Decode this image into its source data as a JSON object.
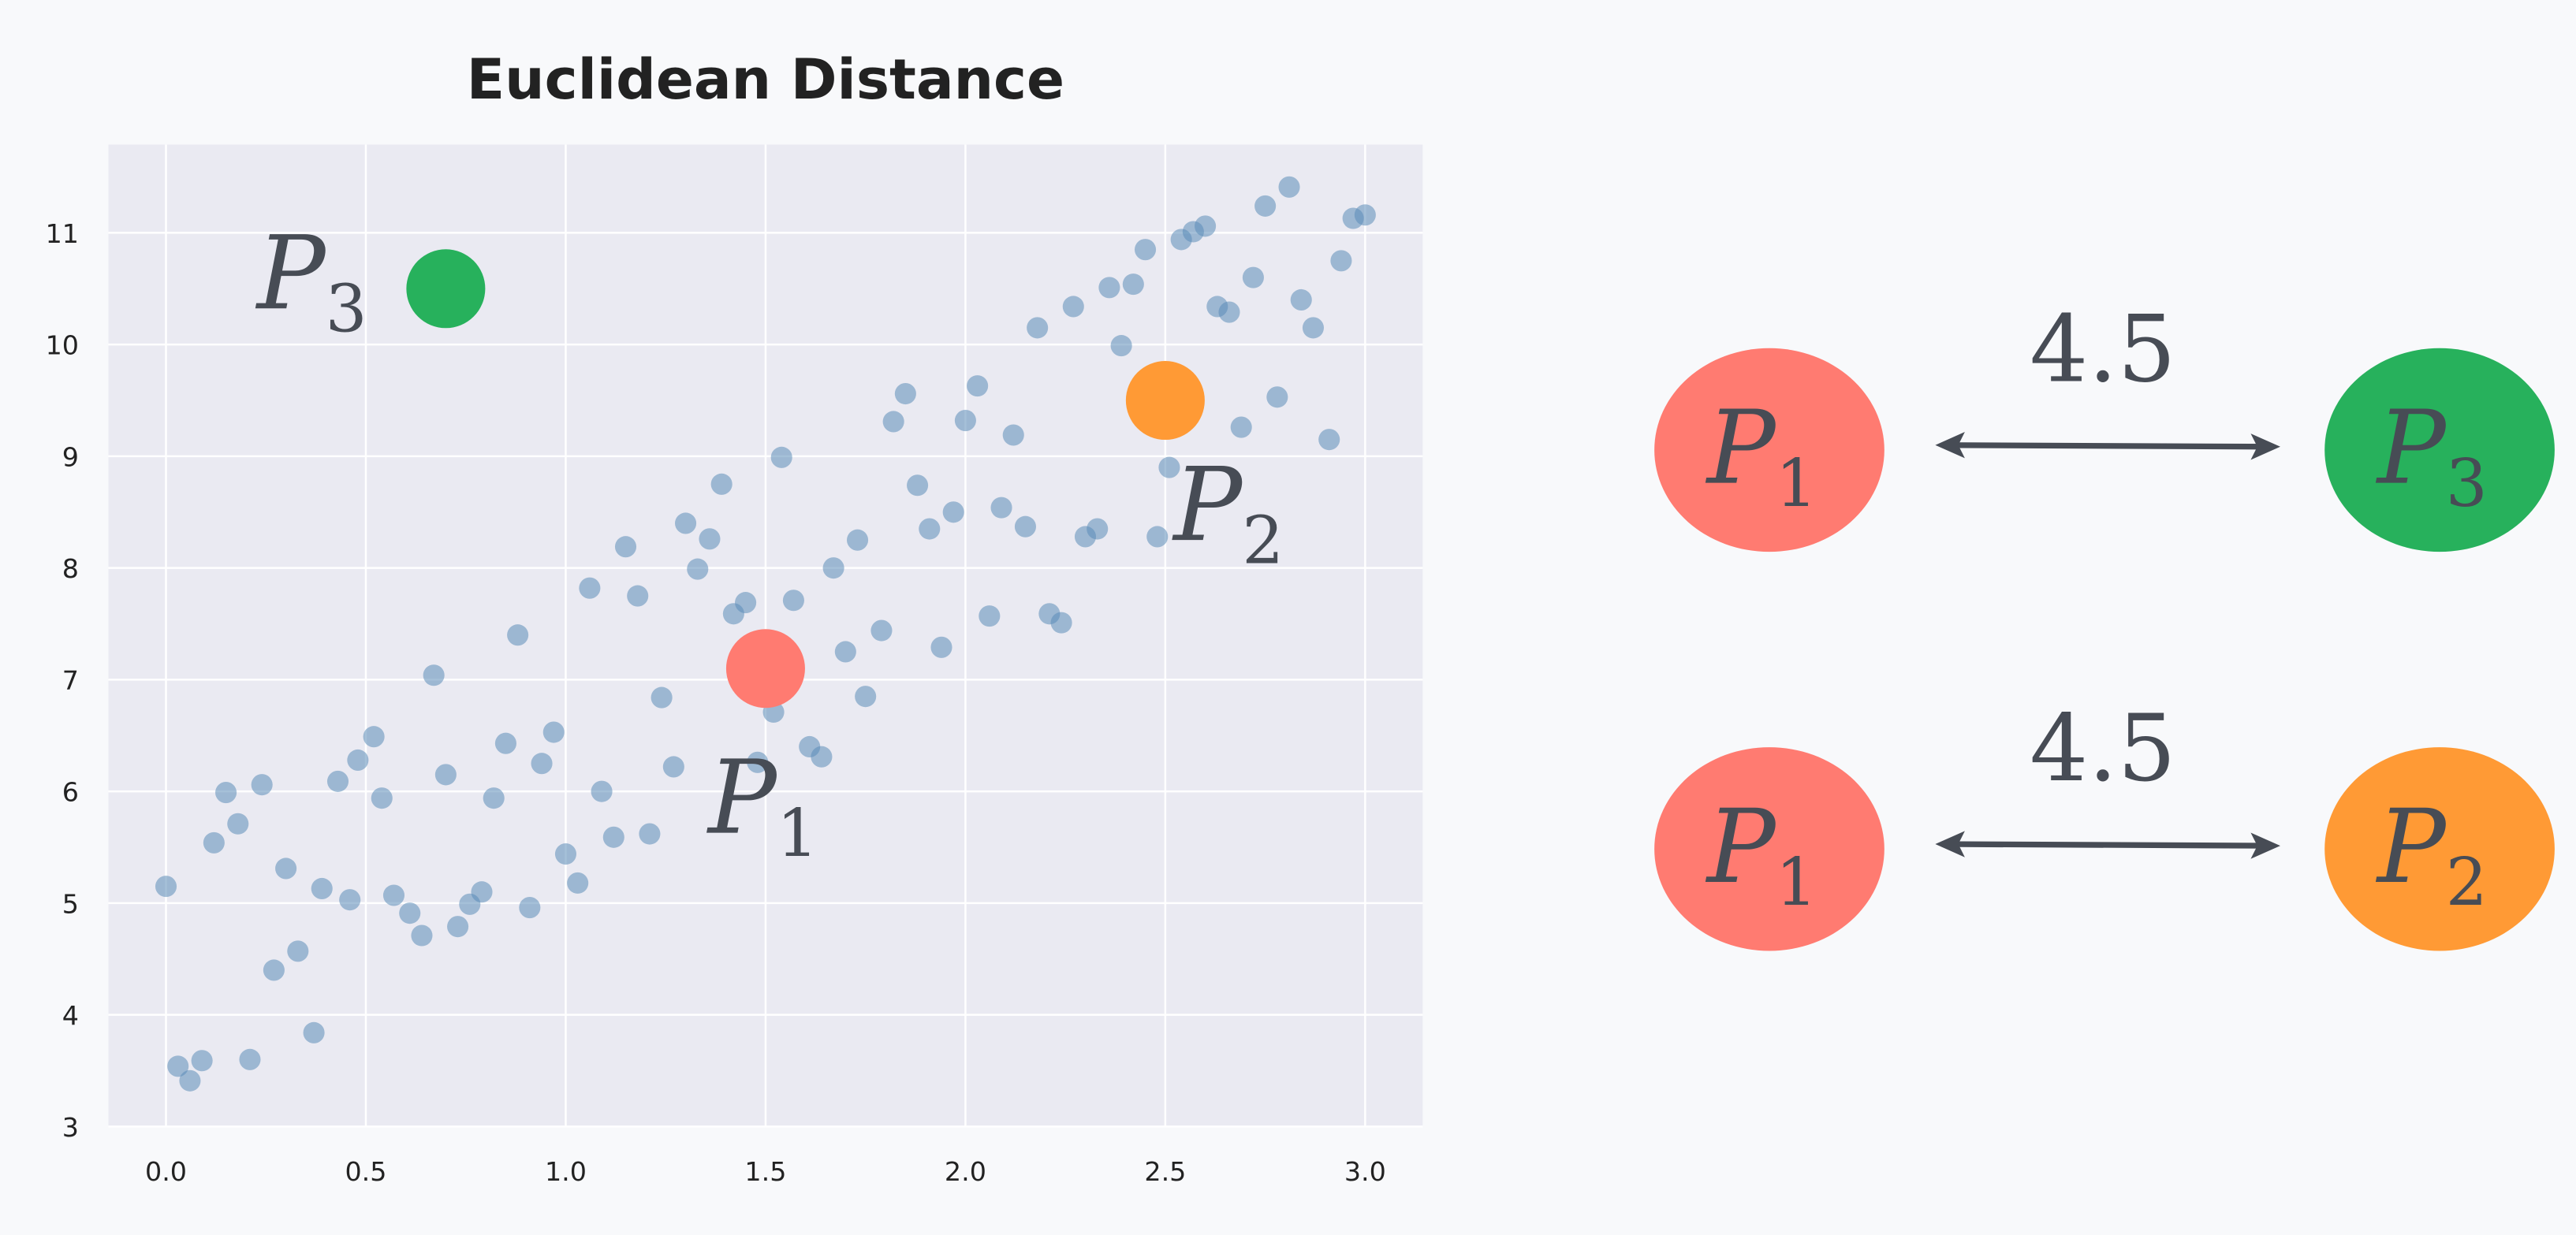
{
  "chart_data": {
    "type": "scatter",
    "title": "Euclidean Distance",
    "xlabel": "",
    "ylabel": "",
    "xlim": [
      -0.144,
      3.144
    ],
    "ylim": [
      3.0,
      11.79
    ],
    "xticks": [
      "0.0",
      "0.5",
      "1.0",
      "1.5",
      "2.0",
      "2.5",
      "3.0"
    ],
    "yticks": [
      "3",
      "4",
      "5",
      "6",
      "7",
      "8",
      "9",
      "10",
      "11"
    ],
    "grid": true,
    "series": [
      {
        "name": "data",
        "color": "#5b8db8",
        "x": [
          0,
          0.03,
          0.06,
          0.09,
          0.12,
          0.15,
          0.18,
          0.21,
          0.24,
          0.27,
          0.3,
          0.33,
          0.37,
          0.39,
          0.43,
          0.46,
          0.48,
          0.52,
          0.54,
          0.57,
          0.61,
          0.64,
          0.67,
          0.7,
          0.73,
          0.76,
          0.79,
          0.82,
          0.85,
          0.88,
          0.91,
          0.94,
          0.97,
          1.0,
          1.03,
          1.06,
          1.09,
          1.12,
          1.15,
          1.18,
          1.21,
          1.24,
          1.27,
          1.3,
          1.33,
          1.36,
          1.39,
          1.42,
          1.45,
          1.48,
          1.52,
          1.54,
          1.57,
          1.61,
          1.64,
          1.67,
          1.7,
          1.73,
          1.75,
          1.79,
          1.82,
          1.85,
          1.88,
          1.91,
          1.94,
          1.97,
          2.0,
          2.03,
          2.06,
          2.09,
          2.12,
          2.15,
          2.18,
          2.21,
          2.24,
          2.27,
          2.3,
          2.33,
          2.36,
          2.39,
          2.42,
          2.45,
          2.48,
          2.51,
          2.54,
          2.57,
          2.6,
          2.63,
          2.66,
          2.69,
          2.72,
          2.75,
          2.78,
          2.81,
          2.84,
          2.87,
          2.91,
          2.94,
          2.97,
          3.0
        ],
        "y": [
          5.15,
          3.54,
          3.41,
          3.59,
          5.54,
          5.99,
          5.71,
          3.6,
          6.06,
          4.4,
          5.31,
          4.57,
          3.84,
          5.13,
          6.09,
          5.03,
          6.28,
          6.49,
          5.94,
          5.07,
          4.91,
          4.71,
          7.04,
          6.15,
          4.79,
          4.99,
          5.1,
          5.94,
          6.43,
          7.4,
          4.96,
          6.25,
          6.53,
          5.44,
          5.18,
          7.82,
          6.0,
          5.59,
          8.19,
          7.75,
          5.62,
          6.84,
          6.22,
          8.4,
          7.99,
          8.26,
          8.75,
          7.59,
          7.69,
          6.26,
          6.71,
          8.99,
          7.71,
          6.4,
          6.31,
          8.0,
          7.25,
          8.25,
          6.85,
          7.44,
          9.31,
          9.56,
          8.74,
          8.35,
          7.29,
          8.5,
          9.32,
          9.63,
          7.57,
          8.54,
          9.19,
          8.37,
          10.15,
          7.59,
          7.51,
          10.34,
          8.28,
          8.35,
          10.51,
          9.99,
          10.54,
          10.85,
          8.28,
          8.9,
          10.94,
          11.01,
          11.06,
          10.34,
          10.29,
          9.26,
          10.6,
          11.24,
          9.53,
          11.41,
          10.4,
          10.15,
          9.15,
          10.75,
          11.13,
          11.16
        ]
      }
    ],
    "highlighted_points": [
      {
        "name": "P",
        "sub": "3",
        "x": 0.7,
        "y": 10.5,
        "color": "#27b15c"
      },
      {
        "name": "P",
        "sub": "2",
        "x": 2.5,
        "y": 9.5,
        "color": "#ff9a35"
      },
      {
        "name": "P",
        "sub": "1",
        "x": 1.5,
        "y": 7.1,
        "color": "#ff7b71"
      }
    ]
  },
  "diagram": {
    "pairs": [
      {
        "a": {
          "name": "P",
          "sub": "1",
          "color": "#ff7b71"
        },
        "b": {
          "name": "P",
          "sub": "3",
          "color": "#27b15c"
        },
        "distance": "4.5"
      },
      {
        "a": {
          "name": "P",
          "sub": "1",
          "color": "#ff7b71"
        },
        "b": {
          "name": "P",
          "sub": "2",
          "color": "#ff9a35"
        },
        "distance": "4.5"
      }
    ]
  }
}
